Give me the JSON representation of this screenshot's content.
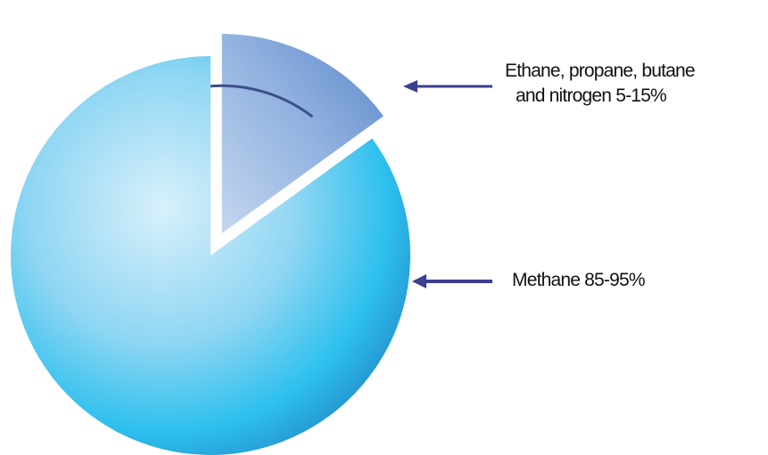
{
  "chart_data": {
    "type": "pie",
    "title": "",
    "slices": [
      {
        "label_line1": "Ethane, propane, butane",
        "label_line2": "and nitrogen 5-15%",
        "value": 15,
        "color": "#6f97d0",
        "exploded": true
      },
      {
        "label": "Methane 85-95%",
        "value": 85,
        "color": "#30c0ee",
        "exploded": false
      }
    ],
    "legend": "none",
    "arrow_color": "#3a3f8f"
  }
}
